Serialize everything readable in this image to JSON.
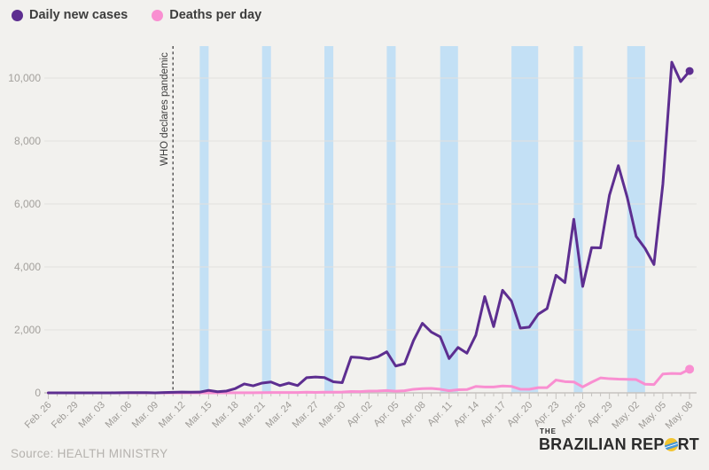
{
  "page": {
    "background": "#f2f1ee"
  },
  "legend": {
    "items": [
      {
        "label": "Daily new cases",
        "color": "#5d2e90"
      },
      {
        "label": "Deaths per day",
        "color": "#f98fd1"
      }
    ]
  },
  "annotation": {
    "text": "WHO declares pandemic",
    "event_date": "Mar. 11",
    "day_index": 14
  },
  "footer": {
    "source": "Source: HEALTH MINISTRY",
    "logo": {
      "the": "THE",
      "main_pre": "BRAZILIAN REP",
      "main_post": "RT",
      "text_color": "#2b2b2b",
      "globe_yellow": "#f2c531",
      "globe_blue": "#4596d8"
    }
  },
  "chart_data": {
    "type": "line",
    "title": "",
    "x_start": "Feb. 26",
    "x_end": "May. 08",
    "x_tick_interval_days": 3,
    "x_tick_labels": [
      "Feb. 26",
      "Feb. 29",
      "Mar. 03",
      "Mar. 06",
      "Mar. 09",
      "Mar. 12",
      "Mar. 15",
      "Mar. 18",
      "Mar. 21",
      "Mar. 24",
      "Mar. 27",
      "Mar. 30",
      "Apr. 02",
      "Apr. 05",
      "Apr. 08",
      "Apr. 11",
      "Apr. 14",
      "Apr. 17",
      "Apr. 20",
      "Apr. 23",
      "Apr. 26",
      "Apr. 29",
      "May. 02",
      "May. 05",
      "May. 08"
    ],
    "y_ticks": [
      0,
      2000,
      4000,
      6000,
      8000,
      10000
    ],
    "y_tick_labels": [
      "0",
      "2,000",
      "4,000",
      "6,000",
      "8,000",
      "10,000"
    ],
    "ylim": [
      0,
      11000
    ],
    "grid": "horizontal",
    "legend_position": "top-left",
    "grid_color": "#e3e1dd",
    "axis_color": "#c6c3bf",
    "dash_line_color": "#4d4d4d",
    "weekend_holiday_bands": {
      "color": "#c3e0f5",
      "day_ranges": [
        [
          17,
          18
        ],
        [
          24,
          25
        ],
        [
          31,
          32
        ],
        [
          38,
          39
        ],
        [
          44,
          46
        ],
        [
          52,
          55
        ],
        [
          59,
          60
        ],
        [
          65,
          67
        ]
      ]
    },
    "series": [
      {
        "name": "Daily new cases",
        "color": "#5d2e90",
        "values": [
          1,
          0,
          0,
          1,
          0,
          0,
          0,
          1,
          4,
          6,
          6,
          6,
          0,
          9,
          18,
          25,
          21,
          23,
          79,
          34,
          57,
          137,
          283,
          224,
          310,
          345,
          232,
          310,
          232,
          482,
          502,
          487,
          352,
          323,
          1138,
          1119,
          1074,
          1146,
          1304,
          852,
          926,
          1661,
          2210,
          1930,
          1781,
          1089,
          1442,
          1261,
          1832,
          3058,
          2105,
          3257,
          2917,
          2055,
          2089,
          2498,
          2678,
          3735,
          3503,
          5514,
          3379,
          4613,
          4607,
          6276,
          7218,
          6209,
          4970,
          4588,
          4075,
          6633,
          10503,
          9888,
          10222
        ]
      },
      {
        "name": "Deaths per day",
        "color": "#f98fd1",
        "values": [
          0,
          0,
          0,
          0,
          0,
          0,
          0,
          0,
          0,
          0,
          0,
          0,
          0,
          0,
          0,
          0,
          0,
          0,
          0,
          0,
          1,
          3,
          3,
          4,
          7,
          9,
          9,
          12,
          11,
          20,
          15,
          22,
          22,
          23,
          42,
          39,
          58,
          60,
          73,
          54,
          67,
          114,
          133,
          141,
          115,
          68,
          99,
          105,
          204,
          188,
          188,
          217,
          206,
          115,
          113,
          166,
          165,
          407,
          357,
          346,
          189,
          338,
          474,
          449,
          435,
          428,
          421,
          275,
          263,
          600,
          615,
          610,
          751
        ]
      }
    ]
  }
}
